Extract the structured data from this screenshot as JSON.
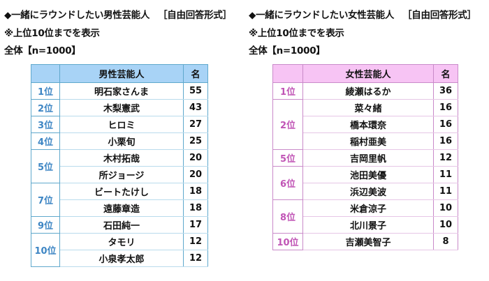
{
  "male": {
    "title": "◆一緒にラウンドしたい男性芸能人",
    "format": "［自由回答形式］",
    "note": "※上位10位までを表示",
    "sample": "全体【n=1000】",
    "header": {
      "rank": "",
      "name": "男性芸能人",
      "count": "名"
    },
    "colors": {
      "header_bg": "#a8d3f6",
      "border": "#5fa8cc",
      "rank_text": "#3e86c4"
    },
    "rows": [
      {
        "rank": "1位",
        "name": "明石家さんま",
        "count": "55"
      },
      {
        "rank": "2位",
        "name": "木梨憲武",
        "count": "43"
      },
      {
        "rank": "3位",
        "name": "ヒロミ",
        "count": "27"
      },
      {
        "rank": "4位",
        "name": "小栗旬",
        "count": "25"
      },
      {
        "rank": "5位",
        "name": "木村拓哉",
        "count": "20"
      },
      {
        "rank": "",
        "name": "所ジョージ",
        "count": "20"
      },
      {
        "rank": "7位",
        "name": "ビートたけし",
        "count": "18"
      },
      {
        "rank": "",
        "name": "遠藤章造",
        "count": "18"
      },
      {
        "rank": "9位",
        "name": "石田純一",
        "count": "17"
      },
      {
        "rank": "10位",
        "name": "タモリ",
        "count": "12"
      },
      {
        "rank": "",
        "name": "小泉孝太郎",
        "count": "12"
      }
    ]
  },
  "female": {
    "title": "◆一緒にラウンドしたい女性芸能人",
    "format": "［自由回答形式］",
    "note": "※上位10位までを表示",
    "sample": "全体【n=1000】",
    "header": {
      "rank": "",
      "name": "女性芸能人",
      "count": "名"
    },
    "colors": {
      "header_bg": "#f7c4f4",
      "border": "#c98ac9",
      "rank_text": "#c054b5"
    },
    "rows": [
      {
        "rank": "1位",
        "name": "綾瀬はるか",
        "count": "36"
      },
      {
        "rank": "2位",
        "name": "菜々緒",
        "count": "16"
      },
      {
        "rank": "",
        "name": "橋本環奈",
        "count": "16"
      },
      {
        "rank": "",
        "name": "稲村亜美",
        "count": "16"
      },
      {
        "rank": "5位",
        "name": "吉岡里帆",
        "count": "12"
      },
      {
        "rank": "6位",
        "name": "池田美優",
        "count": "11"
      },
      {
        "rank": "",
        "name": "浜辺美波",
        "count": "11"
      },
      {
        "rank": "8位",
        "name": "米倉涼子",
        "count": "10"
      },
      {
        "rank": "",
        "name": "北川景子",
        "count": "10"
      },
      {
        "rank": "10位",
        "name": "吉瀬美智子",
        "count": "8"
      }
    ]
  }
}
